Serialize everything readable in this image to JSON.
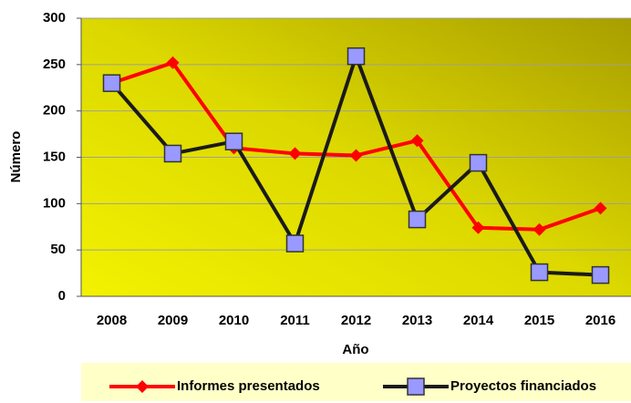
{
  "chart_data": {
    "type": "line",
    "x_label": "Año",
    "y_label": "Número",
    "categories": [
      "2008",
      "2009",
      "2010",
      "2011",
      "2012",
      "2013",
      "2014",
      "2015",
      "2016"
    ],
    "series": [
      {
        "name": "Informes presentados",
        "color": "#ff0000",
        "marker": "diamond",
        "values": [
          230,
          252,
          160,
          154,
          152,
          168,
          74,
          72,
          95
        ]
      },
      {
        "name": "Proyectos financiados",
        "color": "#1a1a1a",
        "marker": "square",
        "marker_color": "#9999ff",
        "values": [
          230,
          154,
          167,
          57,
          259,
          83,
          144,
          26,
          23
        ]
      }
    ],
    "ylim": [
      0,
      300
    ],
    "yticks": [
      0,
      50,
      100,
      150,
      200,
      250,
      300
    ],
    "grid": true,
    "legend": "bottom"
  }
}
